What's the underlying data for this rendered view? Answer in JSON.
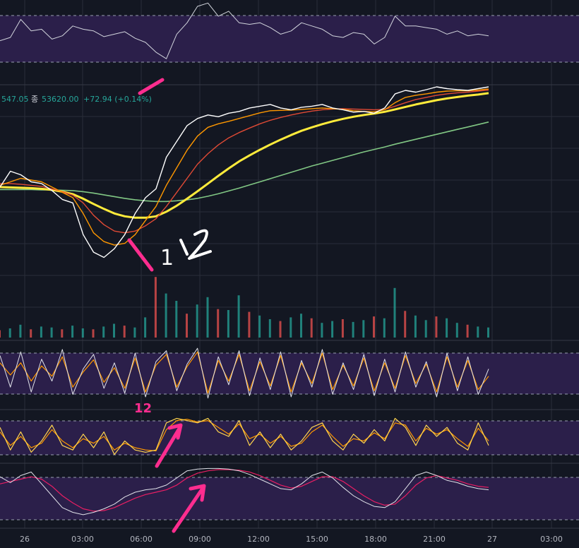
{
  "legend": {
    "prefix": "547.05",
    "close_label": "종",
    "close_value": "53620.00",
    "change": "+72.94 (+0.14%)"
  },
  "time_axis": [
    "26",
    "03:00",
    "06:00",
    "09:00",
    "12:00",
    "15:00",
    "18:00",
    "21:00",
    "27",
    "03:00"
  ],
  "annotations": {
    "sub_label": "12",
    "price_labels": [
      "1",
      "1",
      "2"
    ]
  },
  "colors": {
    "background": "#131722",
    "grid": "#2a2e39",
    "panel_band": "#2b1f4a",
    "price_line": "#ffffff",
    "ma_orange": "#ff9800",
    "ma_red": "#e04a35",
    "ma_yellow": "#ffeb3b",
    "ma_green": "#81c784",
    "stoch_k": "#ff9800",
    "stoch_d": "#ffd54f",
    "rsi_ma": "#e91e63",
    "annotation_pink": "#ff2d8f",
    "legend_text": "#26a69a",
    "volume_up": "#26a69a",
    "volume_down": "#ef5350"
  },
  "chart_data": [
    {
      "type": "line",
      "series": [
        {
          "values": [
            52,
            56,
            78,
            64,
            66,
            54,
            58,
            70,
            66,
            64,
            57,
            60,
            63,
            55,
            50,
            38,
            30,
            60,
            74,
            94,
            98,
            82,
            88,
            74,
            72,
            74,
            68,
            60,
            64,
            74,
            70,
            66,
            58,
            56,
            62,
            60,
            48,
            56,
            82,
            70,
            70,
            68,
            66,
            60,
            64,
            58,
            60,
            58
          ]
        }
      ]
    },
    {
      "type": "line",
      "series": [
        {
          "values": [
            53335,
            53380,
            53370,
            53350,
            53345,
            53325,
            53300,
            53290,
            53200,
            53150,
            53135,
            53160,
            53200,
            53260,
            53305,
            53330,
            53420,
            53465,
            53510,
            53530,
            53540,
            53535,
            53545,
            53550,
            53560,
            53565,
            53570,
            53560,
            53555,
            53562,
            53565,
            53570,
            53560,
            53555,
            53548,
            53550,
            53545,
            53560,
            53600,
            53610,
            53605,
            53612,
            53620,
            53615,
            53612,
            53610,
            53615,
            53620
          ]
        },
        {
          "values": [
            53340,
            53350,
            53360,
            53355,
            53350,
            53335,
            53320,
            53305,
            53260,
            53205,
            53180,
            53170,
            53175,
            53200,
            53240,
            53280,
            53340,
            53390,
            53440,
            53480,
            53505,
            53515,
            53522,
            53530,
            53538,
            53546,
            53552,
            53553,
            53554,
            53556,
            53558,
            53560,
            53558,
            53556,
            53552,
            53550,
            53549,
            53555,
            53575,
            53590,
            53596,
            53600,
            53605,
            53608,
            53609,
            53609,
            53611,
            53614
          ]
        },
        {
          "values": [
            53345,
            53345,
            53343,
            53340,
            53337,
            53330,
            53322,
            53312,
            53290,
            53255,
            53228,
            53210,
            53205,
            53210,
            53225,
            53245,
            53280,
            53320,
            53360,
            53400,
            53430,
            53455,
            53475,
            53490,
            53503,
            53515,
            53525,
            53533,
            53540,
            53546,
            53551,
            53555,
            53557,
            53558,
            53557,
            53556,
            53555,
            53556,
            53565,
            53575,
            53584,
            53590,
            53596,
            53600,
            53603,
            53605,
            53608,
            53611
          ]
        },
        {
          "values": [
            53335,
            53334,
            53333,
            53332,
            53330,
            53327,
            53322,
            53315,
            53302,
            53287,
            53273,
            53260,
            53252,
            53248,
            53248,
            53252,
            53265,
            53282,
            53302,
            53323,
            53345,
            53367,
            53388,
            53408,
            53425,
            53441,
            53456,
            53470,
            53483,
            53495,
            53505,
            53514,
            53522,
            53529,
            53535,
            53540,
            53544,
            53549,
            53556,
            53563,
            53570,
            53576,
            53582,
            53587,
            53591,
            53595,
            53598,
            53602
          ]
        },
        {
          "values": [
            53328,
            53328,
            53328,
            53328,
            53327,
            53327,
            53326,
            53325,
            53322,
            53318,
            53313,
            53308,
            53303,
            53299,
            53296,
            53294,
            53294,
            53296,
            53299,
            53303,
            53309,
            53316,
            53324,
            53332,
            53341,
            53350,
            53359,
            53368,
            53377,
            53386,
            53395,
            53403,
            53411,
            53419,
            53427,
            53435,
            53442,
            53449,
            53457,
            53464,
            53471,
            53478,
            53485,
            53492,
            53499,
            53506,
            53513,
            53520
          ]
        }
      ]
    },
    {
      "type": "bar",
      "values": [
        8,
        10,
        14,
        9,
        12,
        11,
        9,
        13,
        10,
        9,
        12,
        15,
        13,
        11,
        22,
        66,
        48,
        40,
        26,
        36,
        44,
        31,
        30,
        46,
        28,
        24,
        20,
        18,
        22,
        26,
        21,
        16,
        18,
        20,
        17,
        19,
        23,
        21,
        54,
        29,
        24,
        19,
        23,
        21,
        16,
        14,
        12,
        11
      ]
    },
    {
      "type": "line",
      "series": [
        {
          "values": [
            82,
            30,
            88,
            22,
            76,
            40,
            92,
            18,
            60,
            84,
            28,
            70,
            20,
            86,
            14,
            72,
            90,
            24,
            68,
            94,
            12,
            80,
            34,
            90,
            16,
            78,
            26,
            88,
            14,
            74,
            30,
            92,
            18,
            70,
            26,
            84,
            16,
            76,
            22,
            88,
            30,
            72,
            14,
            86,
            24,
            80,
            18,
            60
          ]
        },
        {
          "values": [
            70,
            50,
            70,
            40,
            65,
            48,
            80,
            30,
            55,
            75,
            38,
            62,
            28,
            78,
            22,
            66,
            84,
            30,
            64,
            88,
            20,
            74,
            40,
            84,
            24,
            72,
            32,
            82,
            22,
            70,
            36,
            86,
            26,
            66,
            32,
            78,
            24,
            70,
            28,
            82,
            36,
            68,
            22,
            80,
            30,
            74,
            26,
            48
          ]
        }
      ]
    },
    {
      "type": "line",
      "series": [
        {
          "values": [
            70,
            20,
            60,
            15,
            40,
            75,
            30,
            20,
            55,
            25,
            60,
            10,
            40,
            20,
            15,
            20,
            80,
            90,
            85,
            80,
            90,
            60,
            50,
            85,
            30,
            60,
            25,
            55,
            20,
            40,
            70,
            80,
            40,
            20,
            55,
            35,
            65,
            40,
            90,
            70,
            30,
            75,
            50,
            70,
            35,
            20,
            80,
            30
          ]
        },
        {
          "values": [
            60,
            30,
            50,
            25,
            35,
            65,
            40,
            25,
            45,
            35,
            50,
            20,
            35,
            25,
            20,
            18,
            65,
            85,
            88,
            82,
            85,
            70,
            55,
            78,
            45,
            55,
            35,
            50,
            28,
            35,
            60,
            75,
            50,
            28,
            45,
            40,
            58,
            45,
            80,
            75,
            40,
            68,
            55,
            65,
            45,
            28,
            68,
            40
          ]
        }
      ]
    },
    {
      "type": "line",
      "series": [
        {
          "values": [
            82,
            72,
            84,
            90,
            70,
            50,
            30,
            22,
            18,
            22,
            28,
            36,
            48,
            56,
            60,
            62,
            68,
            80,
            92,
            95,
            96,
            96,
            95,
            92,
            86,
            78,
            70,
            62,
            60,
            70,
            84,
            90,
            80,
            64,
            50,
            40,
            32,
            30,
            40,
            62,
            84,
            90,
            84,
            76,
            72,
            66,
            62,
            60
          ]
        },
        {
          "values": [
            70,
            74,
            78,
            82,
            78,
            66,
            50,
            38,
            28,
            24,
            25,
            30,
            38,
            46,
            52,
            56,
            60,
            68,
            80,
            88,
            92,
            94,
            94,
            93,
            90,
            84,
            76,
            68,
            63,
            66,
            74,
            82,
            82,
            74,
            62,
            50,
            40,
            34,
            36,
            50,
            68,
            80,
            84,
            80,
            76,
            70,
            66,
            64
          ]
        }
      ]
    }
  ]
}
